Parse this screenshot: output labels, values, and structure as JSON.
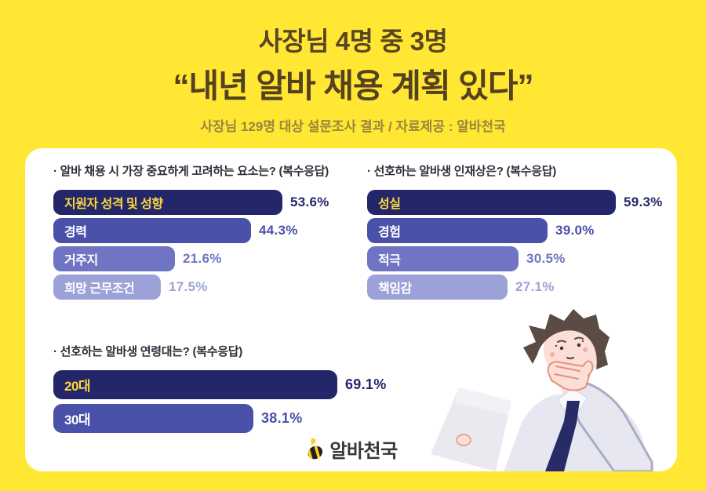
{
  "header": {
    "title_line1": "사장님 4명 중 3명",
    "title_line2": "“내년 알바 채용 계획 있다”",
    "subtitle": "사장님 129명 대상 설문조사 결과 / 자료제공 : 알바천국"
  },
  "chart_data": [
    {
      "type": "bar",
      "orientation": "horizontal",
      "title": "· 알바 채용 시 가장 중요하게 고려하는 요소는? (복수응답)",
      "categories": [
        "지원자 성격 및 성향",
        "경력",
        "거주지",
        "희망 근무조건"
      ],
      "values": [
        53.6,
        44.3,
        21.6,
        17.5
      ],
      "value_labels": [
        "53.6%",
        "44.3%",
        "21.6%",
        "17.5%"
      ],
      "tones": [
        0,
        1,
        2,
        3
      ],
      "xlim": [
        0,
        100
      ],
      "grid": false
    },
    {
      "type": "bar",
      "orientation": "horizontal",
      "title": "· 선호하는 알바생 인재상은? (복수응답)",
      "categories": [
        "성실",
        "경험",
        "적극",
        "책임감"
      ],
      "values": [
        59.3,
        39.0,
        30.5,
        27.1
      ],
      "value_labels": [
        "59.3%",
        "39.0%",
        "30.5%",
        "27.1%"
      ],
      "tones": [
        0,
        1,
        2,
        3
      ],
      "xlim": [
        0,
        100
      ],
      "grid": false
    },
    {
      "type": "bar",
      "orientation": "horizontal",
      "title": "· 선호하는 알바생 연령대는? (복수응답)",
      "categories": [
        "20대",
        "30대"
      ],
      "values": [
        69.1,
        38.1
      ],
      "value_labels": [
        "69.1%",
        "38.1%"
      ],
      "tones": [
        0,
        1
      ],
      "xlim": [
        0,
        100
      ],
      "grid": false
    }
  ],
  "logo": {
    "text": "알바천국",
    "icon": "bee-icon"
  },
  "illustration": "thinking-man-reading-paper",
  "colors": {
    "background": "#FFE733",
    "card": "#FFFFFF",
    "title_brown": "#5A4523",
    "subtitle_olive": "#9A863F",
    "chart_title": "#2E2E3A",
    "bar_tones": [
      "#232769",
      "#4A51A8",
      "#6F75C3",
      "#9CA2D8"
    ],
    "bar_label_accent": "#FFD83C",
    "bar_label_light": "#FFFFFF",
    "logo_text": "#3B3733"
  }
}
